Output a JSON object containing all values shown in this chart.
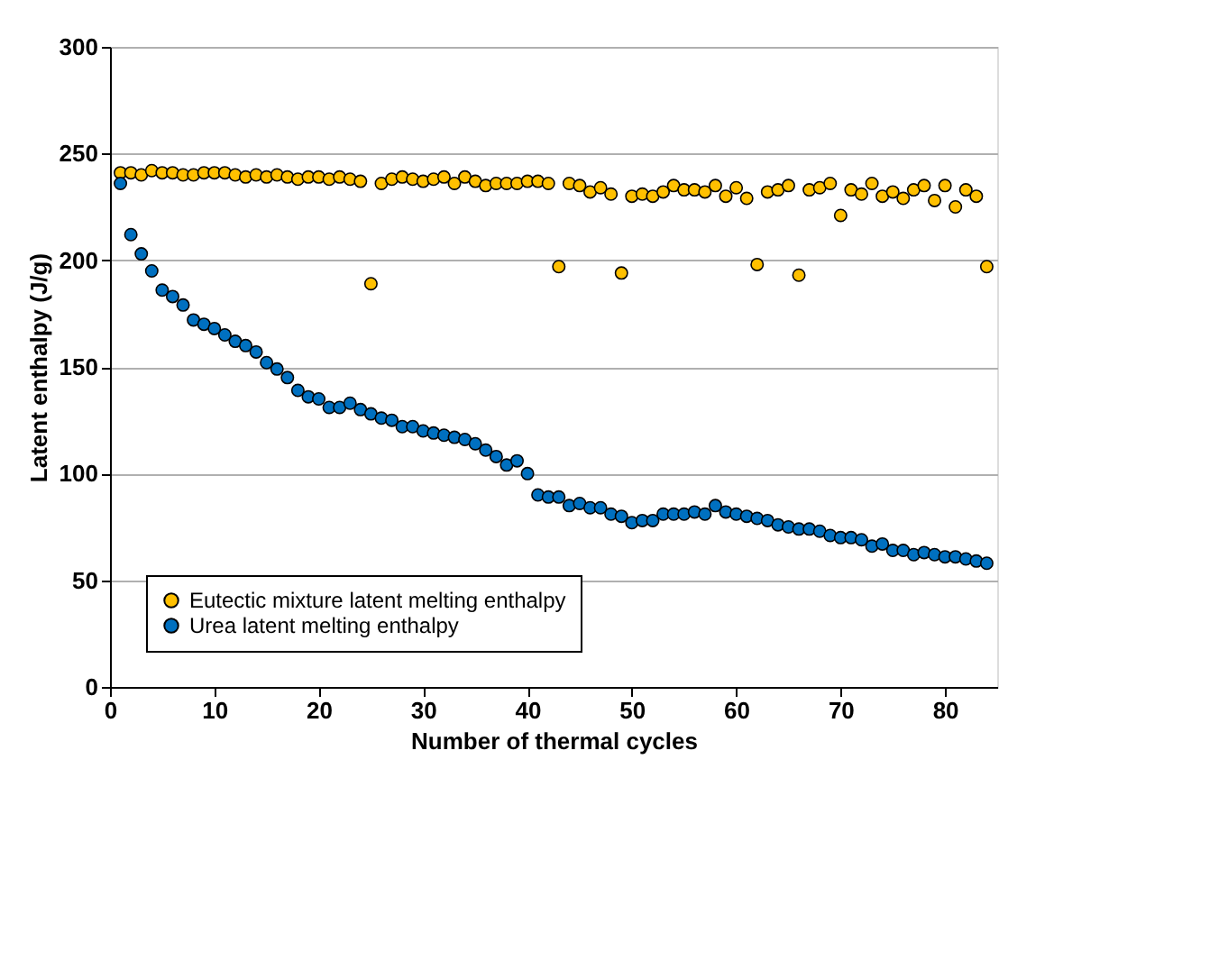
{
  "chart_data": {
    "type": "scatter",
    "xlabel": "Number of thermal cycles",
    "ylabel": "Latent enthalpy (J/g)",
    "x": [
      1,
      2,
      3,
      4,
      5,
      6,
      7,
      8,
      9,
      10,
      11,
      12,
      13,
      14,
      15,
      16,
      17,
      18,
      19,
      20,
      21,
      22,
      23,
      24,
      25,
      26,
      27,
      28,
      29,
      30,
      31,
      32,
      33,
      34,
      35,
      36,
      37,
      38,
      39,
      40,
      41,
      42,
      43,
      44,
      45,
      46,
      47,
      48,
      49,
      50,
      51,
      52,
      53,
      54,
      55,
      56,
      57,
      58,
      59,
      60,
      61,
      62,
      63,
      64,
      65,
      66,
      67,
      68,
      69,
      70,
      71,
      72,
      73,
      74,
      75,
      76,
      77,
      78,
      79,
      80,
      81,
      82,
      83,
      84
    ],
    "series": [
      {
        "name": "Eutectic mixture latent melting enthalpy",
        "color": "#ffc000",
        "values": [
          241,
          241,
          240,
          242,
          241,
          241,
          240,
          240,
          241,
          241,
          241,
          240,
          239,
          240,
          239,
          240,
          239,
          238,
          239,
          239,
          238,
          239,
          238,
          237,
          189,
          236,
          238,
          239,
          238,
          237,
          238,
          239,
          236,
          239,
          237,
          235,
          236,
          236,
          236,
          237,
          237,
          236,
          197,
          236,
          235,
          232,
          234,
          231,
          194,
          230,
          231,
          230,
          232,
          235,
          233,
          233,
          232,
          235,
          230,
          234,
          229,
          198,
          232,
          233,
          235,
          193,
          233,
          234,
          236,
          221,
          233,
          231,
          236,
          230,
          232,
          229,
          233,
          235,
          228,
          235,
          225,
          233,
          230,
          197
        ]
      },
      {
        "name": "Urea latent melting enthalpy",
        "color": "#0070c0",
        "values": [
          236,
          212,
          203,
          195,
          186,
          183,
          179,
          172,
          170,
          168,
          165,
          162,
          160,
          157,
          152,
          149,
          145,
          139,
          136,
          135,
          131,
          131,
          133,
          130,
          128,
          126,
          125,
          122,
          122,
          120,
          119,
          118,
          117,
          116,
          114,
          111,
          108,
          104,
          106,
          100,
          90,
          89,
          89,
          85,
          86,
          84,
          84,
          81,
          80,
          77,
          78,
          78,
          81,
          81,
          81,
          82,
          81,
          85,
          82,
          81,
          80,
          79,
          78,
          76,
          75,
          74,
          74,
          73,
          71,
          70,
          70,
          69,
          66,
          67,
          64,
          64,
          62,
          63,
          62,
          61,
          61,
          60,
          59,
          58
        ]
      }
    ],
    "xlim": [
      0,
      85
    ],
    "xticks": [
      0,
      10,
      20,
      30,
      40,
      50,
      60,
      70,
      80
    ],
    "ylim": [
      0,
      300
    ],
    "yticks": [
      0,
      50,
      100,
      150,
      200,
      250,
      300
    ],
    "grid": "y",
    "legend": "bottom left",
    "marker": "circle"
  }
}
